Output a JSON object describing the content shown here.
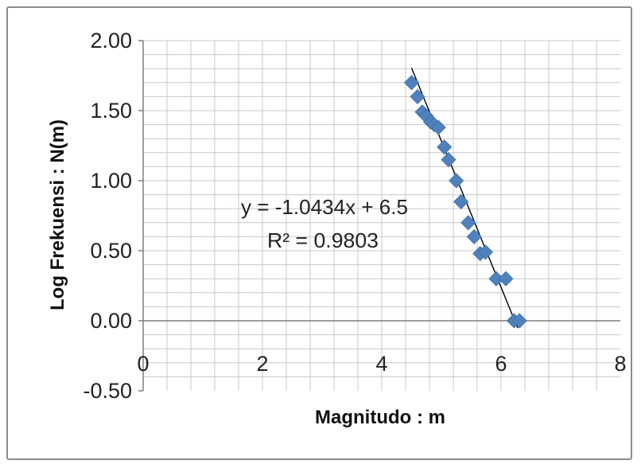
{
  "chart_data": {
    "type": "scatter",
    "title": "",
    "xlabel": "Magnitudo : m",
    "ylabel": "Log Frekuensi : N(m)",
    "xlim": [
      0,
      8
    ],
    "ylim": [
      -0.5,
      2.0
    ],
    "x_ticks": [
      "0",
      "2",
      "4",
      "6",
      "8"
    ],
    "y_ticks": [
      "2.00",
      "1.50",
      "1.00",
      "0.50",
      "0.00",
      "-0.50"
    ],
    "grid": true,
    "legend": "none",
    "marker_color": "#4f81bd",
    "trendline_color": "#000000",
    "points": [
      {
        "x": 4.5,
        "y": 1.7
      },
      {
        "x": 4.6,
        "y": 1.6
      },
      {
        "x": 4.68,
        "y": 1.49
      },
      {
        "x": 4.75,
        "y": 1.46
      },
      {
        "x": 4.82,
        "y": 1.42
      },
      {
        "x": 4.88,
        "y": 1.4
      },
      {
        "x": 4.95,
        "y": 1.38
      },
      {
        "x": 5.05,
        "y": 1.24
      },
      {
        "x": 5.12,
        "y": 1.15
      },
      {
        "x": 5.25,
        "y": 1.0
      },
      {
        "x": 5.33,
        "y": 0.85
      },
      {
        "x": 5.45,
        "y": 0.7
      },
      {
        "x": 5.55,
        "y": 0.6
      },
      {
        "x": 5.65,
        "y": 0.48
      },
      {
        "x": 5.74,
        "y": 0.49
      },
      {
        "x": 5.92,
        "y": 0.3
      },
      {
        "x": 6.08,
        "y": 0.3
      },
      {
        "x": 6.22,
        "y": 0.0
      },
      {
        "x": 6.31,
        "y": 0.0
      }
    ],
    "trendline": {
      "slope": -1.0434,
      "intercept": 6.5,
      "x_start": 4.5,
      "x_end": 6.28
    },
    "annotations": {
      "equation": "y = -1.0434x + 6.5",
      "r2": "R² = 0.9803"
    }
  }
}
